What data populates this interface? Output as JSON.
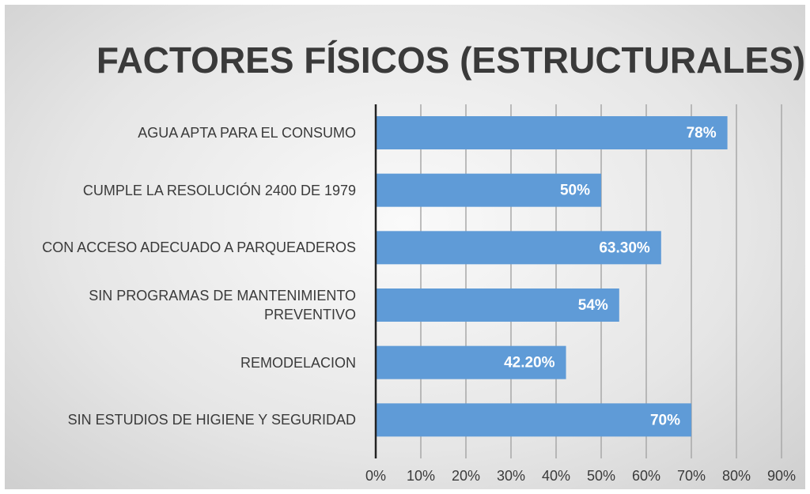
{
  "chart_data": {
    "type": "barh",
    "title": "FACTORES FÍSICOS (ESTRUCTURALES)",
    "categories": [
      "AGUA APTA PARA EL CONSUMO",
      "CUMPLE LA RESOLUCIÓN 2400 DE 1979",
      "CON ACCESO ADECUADO A PARQUEADEROS",
      "SIN PROGRAMAS DE MANTENIMIENTO PREVENTIVO",
      "REMODELACION",
      "SIN ESTUDIOS DE HIGIENE Y SEGURIDAD"
    ],
    "values": [
      78,
      50,
      63.3,
      54,
      42.2,
      70
    ],
    "value_labels": [
      "78%",
      "50%",
      "63.30%",
      "54%",
      "42.20%",
      "70%"
    ],
    "color": "#5f9bd7",
    "xlim": [
      0,
      90
    ],
    "xticks": [
      {
        "value": 0,
        "label": "0%"
      },
      {
        "value": 10,
        "label": "10%"
      },
      {
        "value": 20,
        "label": "20%"
      },
      {
        "value": 30,
        "label": "30%"
      },
      {
        "value": 40,
        "label": "40%"
      },
      {
        "value": 50,
        "label": "50%"
      },
      {
        "value": 60,
        "label": "60%"
      },
      {
        "value": 70,
        "label": "70%"
      },
      {
        "value": 80,
        "label": "80%"
      },
      {
        "value": 90,
        "label": "90%"
      }
    ],
    "grid": true
  }
}
